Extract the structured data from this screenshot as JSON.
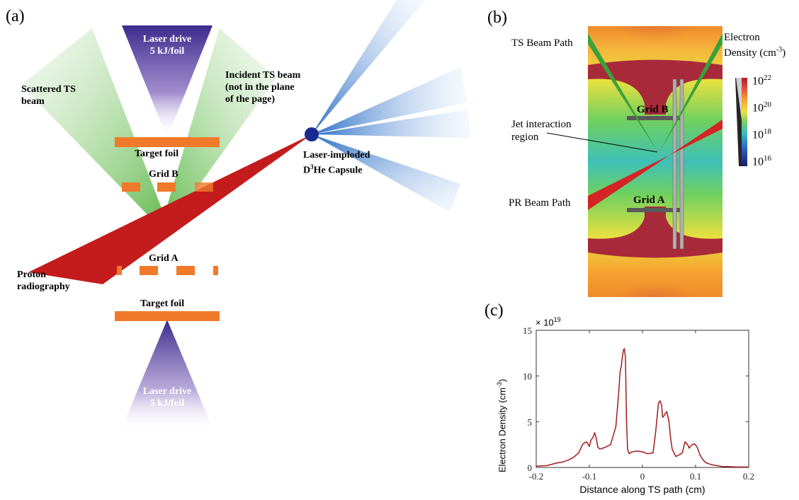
{
  "panel_a": {
    "label": "(a)",
    "laser_drive_top": {
      "line1": "Laser drive",
      "line2": "5 kJ/foil"
    },
    "laser_drive_bottom": {
      "line1": "Laser drive",
      "line2": "5 kJ/foil"
    },
    "scattered_ts": {
      "line1": "Scattered TS",
      "line2": "beam"
    },
    "incident_ts": {
      "line1": "Incident TS beam",
      "line2": "(not in the plane",
      "line3": "of the page)"
    },
    "target_foil_top": "Target foil",
    "target_foil_bottom": "Target foil",
    "grid_b": "Grid B",
    "grid_a": "Grid A",
    "proton": {
      "line1": "Proton",
      "line2": "radiography"
    },
    "capsule": {
      "line1": "Laser-imploded",
      "line2_sup": "3",
      "line2_pre": "D",
      "line2_post": "He Capsule"
    },
    "colors": {
      "laser": "#4b3aa0",
      "ts_beam": "#7dc36a",
      "proton_beam": "#c41c1c",
      "foil": "#f07a2a",
      "capsule": "#1a2a8c",
      "capsule_rays": "#4a8fd6"
    }
  },
  "panel_b": {
    "label": "(b)",
    "ts_beam_path": "TS Beam Path",
    "electron_density": {
      "line1": "Electron",
      "line2": "Density (cm",
      "line2_sup": "-3",
      "line2_end": ")"
    },
    "jet_region": {
      "line1": "Jet interaction",
      "line2": "region"
    },
    "grid_b": "Grid B",
    "grid_a": "Grid A",
    "pr_beam_path": "PR Beam Path",
    "colorbar": [
      {
        "base": "10",
        "exp": "22"
      },
      {
        "base": "10",
        "exp": "20"
      },
      {
        "base": "10",
        "exp": "18"
      },
      {
        "base": "10",
        "exp": "16"
      }
    ]
  },
  "panel_c": {
    "label": "(c)",
    "chart_data": {
      "type": "line",
      "ylabel": "Electron Density (cm",
      "ylabel_sup": "-3",
      "ylabel_end": ")",
      "xlabel": "Distance along TS path (cm)",
      "y_multiplier": {
        "base": "× 10",
        "exp": "19"
      },
      "xlim": [
        -0.2,
        0.2
      ],
      "ylim": [
        0,
        15
      ],
      "xticks": [
        -0.2,
        -0.1,
        0,
        0.1,
        0.2
      ],
      "xtick_labels": [
        "-0.2",
        "-0.1",
        "0",
        "0.1",
        "0.2"
      ],
      "yticks": [
        0,
        5,
        10,
        15
      ],
      "ytick_labels": [
        "0",
        "5",
        "10",
        "15"
      ],
      "line_color": "#a01c1c",
      "series": [
        {
          "x": [
            -0.2,
            -0.18,
            -0.16,
            -0.15,
            -0.14,
            -0.13,
            -0.12,
            -0.112,
            -0.105,
            -0.1,
            -0.097,
            -0.093,
            -0.09,
            -0.087,
            -0.084,
            -0.08,
            -0.07,
            -0.06,
            -0.05,
            -0.045,
            -0.042,
            -0.04,
            -0.038,
            -0.036,
            -0.034,
            -0.032,
            -0.03,
            -0.028,
            -0.025,
            -0.02,
            -0.01,
            0,
            0.01,
            0.02,
            0.025,
            0.03,
            0.033,
            0.036,
            0.038,
            0.04,
            0.043,
            0.046,
            0.05,
            0.053,
            0.056,
            0.06,
            0.063,
            0.066,
            0.07,
            0.075,
            0.08,
            0.085,
            0.088,
            0.09,
            0.094,
            0.098,
            0.103,
            0.108,
            0.112,
            0.116,
            0.12,
            0.13,
            0.14,
            0.15,
            0.16,
            0.18,
            0.2
          ],
          "y": [
            0.15,
            0.2,
            0.5,
            0.6,
            0.8,
            1.1,
            1.6,
            2.6,
            2.8,
            2.3,
            3.0,
            3.3,
            3.8,
            3.2,
            2.2,
            2.0,
            2.2,
            2.5,
            4.5,
            8.0,
            10.5,
            11.0,
            12.0,
            12.8,
            13.0,
            12.0,
            5.0,
            2.0,
            1.5,
            1.7,
            1.8,
            1.7,
            1.5,
            1.6,
            4.0,
            7.0,
            7.3,
            6.8,
            5.5,
            5.6,
            5.9,
            6.1,
            5.0,
            3.2,
            2.0,
            1.5,
            1.2,
            1.3,
            1.4,
            1.6,
            2.8,
            2.5,
            2.1,
            2.3,
            2.5,
            2.6,
            2.2,
            1.4,
            1.0,
            0.7,
            0.5,
            0.3,
            0.2,
            0.1,
            0.1,
            0.05,
            0.05
          ]
        }
      ]
    }
  }
}
